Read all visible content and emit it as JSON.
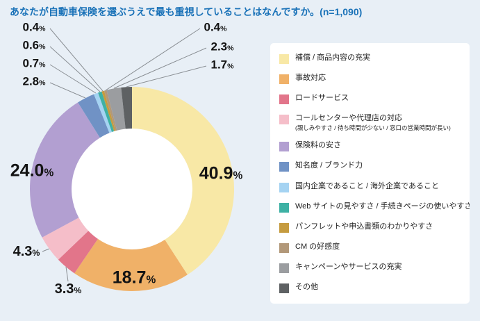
{
  "header": {
    "title": "あなたが自動車保険を選ぶうえで最も重視していることはなんですか。(n=1,090)"
  },
  "colors": {
    "background": "#E8EFF6",
    "title_text": "#1A72B8",
    "panel": "#FFFFFF",
    "label_text": "#141414",
    "leader_line": "#8A8F94",
    "donut_hole": "#FFFFFF"
  },
  "chart_data": {
    "type": "pie",
    "subtype": "donut",
    "title": "あなたが自動車保険を選ぶうえで最も重視していることはなんですか。(n=1,090)",
    "sample_size": "n=1,090",
    "unit": "%",
    "direction": "clockwise",
    "start_angle_deg": 0,
    "legend_position": "right",
    "categories": [
      "補償 / 商品内容の充実",
      "事故対応",
      "ロードサービス",
      "コールセンターや代理店の対応",
      "保険料の安さ",
      "知名度 / ブランド力",
      "国内企業であること / 海外企業であること",
      "Web サイトの見やすさ / 手続きページの使いやすさ",
      "パンフレットや申込書類のわかりやすさ",
      "CM の好感度",
      "キャンペーンやサービスの充実",
      "その他"
    ],
    "category_notes": {
      "3": "(親しみやすさ / 待ち時間が少ない / 窓口の営業時間が長い)"
    },
    "values": [
      40.9,
      18.7,
      3.3,
      4.3,
      24.0,
      2.8,
      0.7,
      0.6,
      0.4,
      0.4,
      2.3,
      1.7
    ],
    "colors": [
      "#F8E8A6",
      "#F0B168",
      "#E2758A",
      "#F5BEC9",
      "#B29FD1",
      "#7092C5",
      "#A5D3F2",
      "#3EB1A4",
      "#C59B3F",
      "#B29879",
      "#9B9DA0",
      "#5E6163"
    ]
  }
}
